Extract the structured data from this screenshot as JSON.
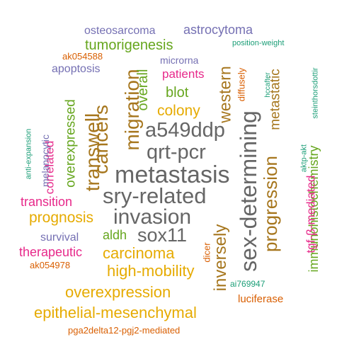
{
  "palette": {
    "gray": "#666666",
    "gold": "#e6ab02",
    "brown": "#a6761d",
    "green": "#66a61e",
    "purple": "#7570b3",
    "orange": "#d95f02",
    "magenta": "#e7298a",
    "teal": "#1b9e77"
  },
  "words": {
    "metastasis": "metastasis",
    "sry_related": "sry-related",
    "invasion": "invasion",
    "qrt_pcr": "qrt-pcr",
    "a549ddp": "a549ddp",
    "sex_determining": "sex-determining",
    "sox11": "sox11",
    "migration": "migration",
    "cancers": "cancers",
    "transwell": "transwell",
    "progression": "progression",
    "inversely": "inversely",
    "high_mobility": "high-mobility",
    "overexpression": "overexpression",
    "epithelial_mesenchymal": "epithelial-mesenchymal",
    "carcinoma": "carcinoma",
    "prognosis": "prognosis",
    "tumorigenesis": "tumorigenesis",
    "colony": "colony",
    "western": "western",
    "metastatic": "metastatic",
    "immunohistochemistry": "immunohistochemistry",
    "overall": "overall",
    "blot": "blot",
    "patients": "patients",
    "transition": "transition",
    "therapeutic": "therapeutic",
    "aldh": "aldh",
    "overexpressed": "overexpressed",
    "correlated": "correlated",
    "osteosarcoma": "osteosarcoma",
    "astrocytoma": "astrocytoma",
    "apoptosis": "apoptosis",
    "survival": "survival",
    "tgf_mediated": "tgf-β-mediated",
    "luciferase": "luciferase",
    "microrna": "microrna",
    "ak054588": "ak054588",
    "ak054978": "ak054978",
    "pga2delta12": "pga2delta12-pgj2-mediated",
    "dicer": "dicer",
    "diffusely": "diffusely",
    "ai769947": "ai769947",
    "melanocytic": "melanocytic",
    "anti_expansion": "anti-expansion",
    "position_weight": "position-weight",
    "hccafter": "hccafter",
    "steinthorsdottir": "steinthorsdottir",
    "aktp_akt": "aktp-akt"
  }
}
